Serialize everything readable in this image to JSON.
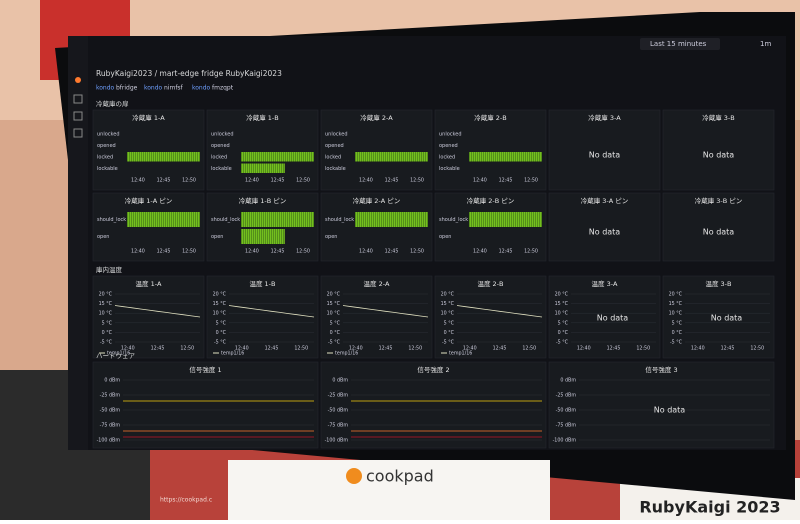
{
  "toolbar": {
    "time_range": "Last 15 minutes",
    "refresh": "1m"
  },
  "breadcrumb": "RubyKaigi2023 / mart-edge fridge RubyKaigi2023",
  "variables": [
    "kondo",
    "bfridge",
    "kondo",
    "nimfsf",
    "kondo",
    "fmzqpt"
  ],
  "sections": [
    {
      "title": "冷蔵庫の扉",
      "panels": [
        {
          "title": "冷蔵庫 1-A",
          "labels": [
            "unlocked",
            "opened",
            "locked",
            "lockable"
          ],
          "times": [
            "12:40",
            "12:45",
            "12:50"
          ]
        },
        {
          "title": "冷蔵庫 1-B",
          "labels": [
            "unlocked",
            "opened",
            "locked",
            "lockable"
          ],
          "times": [
            "12:40",
            "12:45",
            "12:50"
          ]
        },
        {
          "title": "冷蔵庫 2-A",
          "labels": [
            "unlocked",
            "opened",
            "locked",
            "lockable"
          ],
          "times": [
            "12:40",
            "12:45",
            "12:50"
          ]
        },
        {
          "title": "冷蔵庫 2-B",
          "labels": [
            "unlocked",
            "opened",
            "locked",
            "lockable"
          ],
          "times": [
            "12:40",
            "12:45",
            "12:50"
          ]
        },
        {
          "title": "冷蔵庫 3-A",
          "message": "No data"
        },
        {
          "title": "冷蔵庫 3-B",
          "message": "No data"
        }
      ]
    },
    {
      "panels": [
        {
          "title": "冷蔵庫 1-A ピン",
          "labels": [
            "should_lock",
            "open"
          ],
          "times": [
            "12:40",
            "12:45",
            "12:50"
          ]
        },
        {
          "title": "冷蔵庫 1-B ピン",
          "labels": [
            "should_lock",
            "open"
          ],
          "times": [
            "12:40",
            "12:45",
            "12:50"
          ]
        },
        {
          "title": "冷蔵庫 2-A ピン",
          "labels": [
            "should_lock",
            "open"
          ],
          "times": [
            "12:40",
            "12:45",
            "12:50"
          ]
        },
        {
          "title": "冷蔵庫 2-B ピン",
          "labels": [
            "should_lock",
            "open"
          ],
          "times": [
            "12:40",
            "12:45",
            "12:50"
          ]
        },
        {
          "title": "冷蔵庫 3-A ピン",
          "message": "No data"
        },
        {
          "title": "冷蔵庫 3-B ピン",
          "message": "No data"
        }
      ]
    },
    {
      "title": "庫内温度",
      "panels": [
        {
          "title": "温度 1-A",
          "yticks": [
            "20 °C",
            "15 °C",
            "10 °C",
            "5 °C",
            "0 °C",
            "-5 °C"
          ],
          "times": [
            "12:40",
            "12:45",
            "12:50"
          ],
          "legend": "temp1/16"
        },
        {
          "title": "温度 1-B",
          "yticks": [
            "20 °C",
            "15 °C",
            "10 °C",
            "5 °C",
            "0 °C",
            "-5 °C"
          ],
          "times": [
            "12:40",
            "12:45",
            "12:50"
          ],
          "legend": "temp1/16"
        },
        {
          "title": "温度 2-A",
          "yticks": [
            "20 °C",
            "15 °C",
            "10 °C",
            "5 °C",
            "0 °C",
            "-5 °C"
          ],
          "times": [
            "12:40",
            "12:45",
            "12:50"
          ],
          "legend": "temp1/16"
        },
        {
          "title": "温度 2-B",
          "yticks": [
            "20 °C",
            "15 °C",
            "10 °C",
            "5 °C",
            "0 °C",
            "-5 °C"
          ],
          "times": [
            "12:40",
            "12:45",
            "12:50"
          ],
          "legend": "temp1/16"
        },
        {
          "title": "温度 3-A",
          "yticks": [
            "20 °C",
            "15 °C",
            "10 °C",
            "5 °C",
            "0 °C",
            "-5 °C"
          ],
          "times": [
            "12:40",
            "12:45",
            "12:50"
          ],
          "message": "No data"
        },
        {
          "title": "温度 3-B",
          "yticks": [
            "20 °C",
            "15 °C",
            "10 °C",
            "5 °C",
            "0 °C",
            "-5 °C"
          ],
          "times": [
            "12:40",
            "12:45",
            "12:50"
          ],
          "message": "No data"
        }
      ]
    },
    {
      "title": "ハードウェア",
      "panels": [
        {
          "title": "信号強度 1",
          "yticks": [
            "0 dBm",
            "-25 dBm",
            "-50 dBm",
            "-75 dBm",
            "-100 dBm"
          ],
          "signal": true
        },
        {
          "title": "信号強度 2",
          "yticks": [
            "0 dBm",
            "-25 dBm",
            "-50 dBm",
            "-75 dBm",
            "-100 dBm"
          ],
          "signal": true
        },
        {
          "title": "信号強度 3",
          "yticks": [
            "0 dBm",
            "-25 dBm",
            "-50 dBm",
            "-75 dBm",
            "-100 dBm"
          ],
          "message": "No data"
        }
      ]
    }
  ],
  "sign": {
    "brand": "cookpad",
    "url": "https://cookpad.c"
  },
  "banner": "RubyKaigi 2023"
}
